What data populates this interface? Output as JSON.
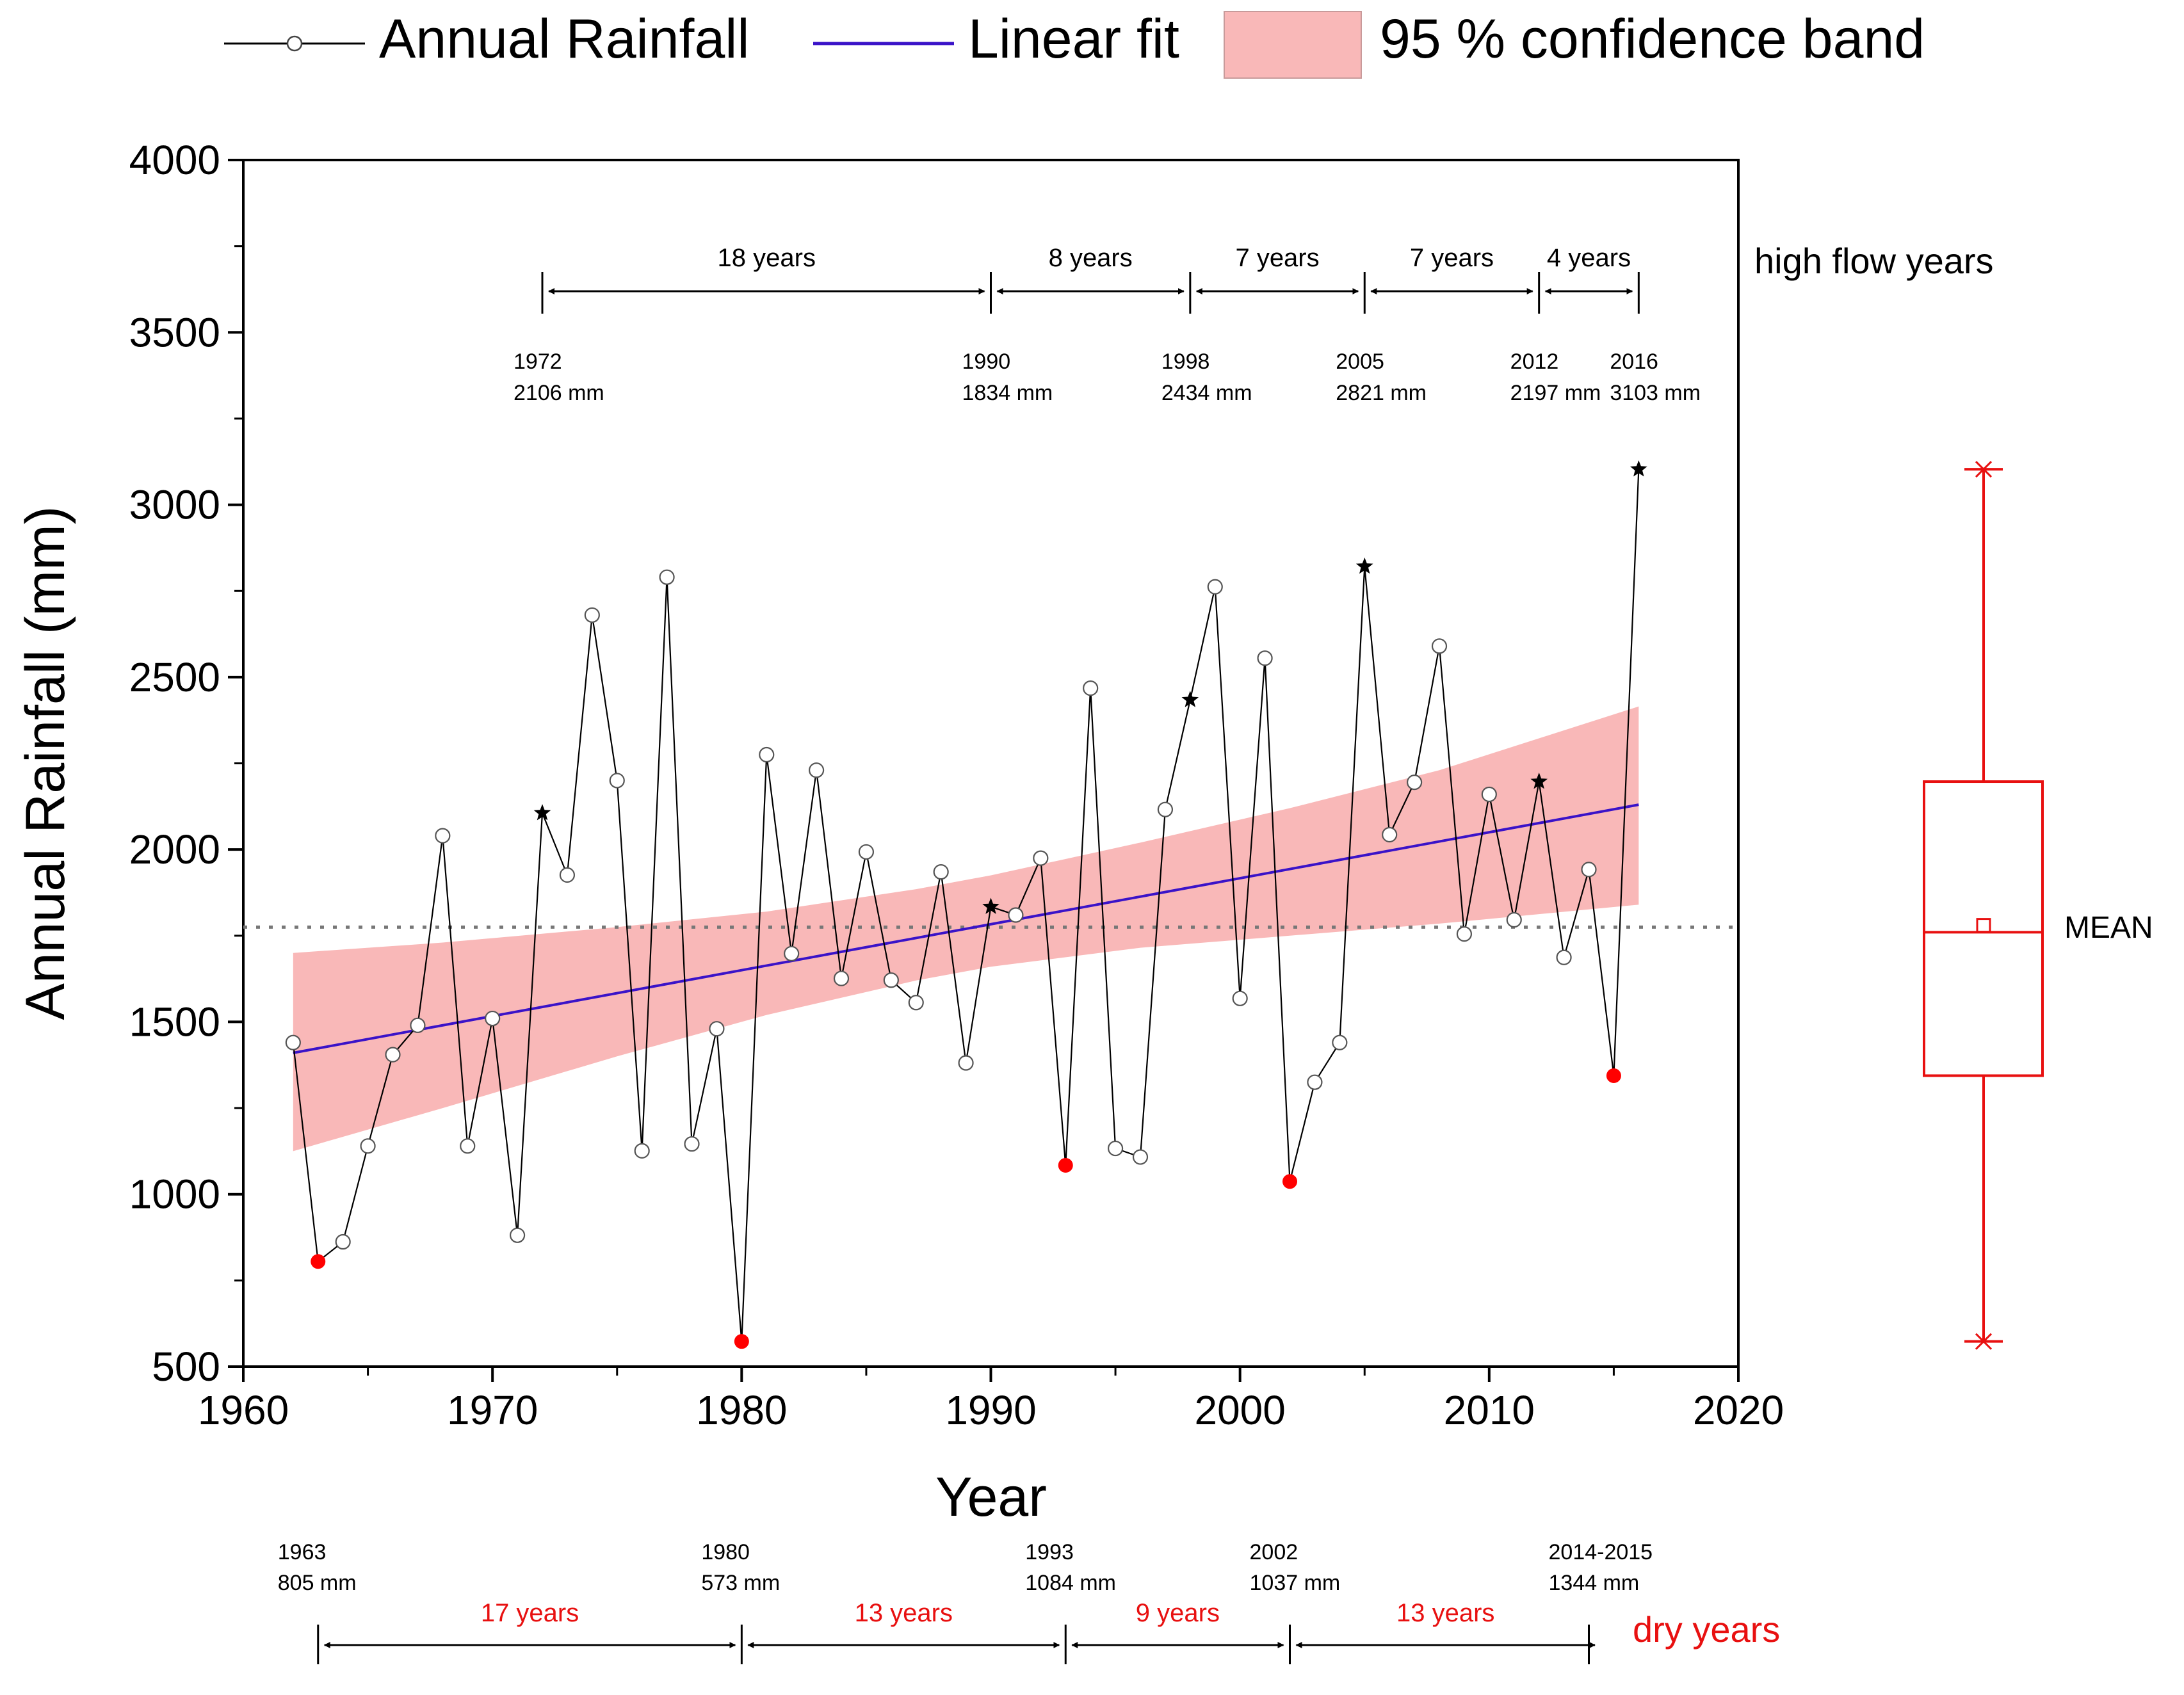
{
  "chart_data": {
    "type": "line",
    "xlabel": "Year",
    "ylabel": "Annual Rainfall (mm)",
    "xlim": [
      1960,
      2020
    ],
    "ylim": [
      500,
      4000
    ],
    "x_ticks": [
      "1960",
      "1970",
      "1980",
      "1990",
      "2000",
      "2010",
      "2020"
    ],
    "y_ticks": [
      "500",
      "1000",
      "1500",
      "2000",
      "2500",
      "3000",
      "3500",
      "4000"
    ],
    "legend": {
      "position": "top",
      "entries": [
        "Annual Rainfall",
        "Linear fit",
        "95 % confidence band"
      ]
    },
    "series": [
      {
        "name": "Annual Rainfall",
        "color": "#000000",
        "x": [
          1962,
          1963,
          1964,
          1965,
          1966,
          1967,
          1968,
          1969,
          1970,
          1971,
          1972,
          1973,
          1974,
          1975,
          1976,
          1977,
          1978,
          1979,
          1980,
          1981,
          1982,
          1983,
          1984,
          1985,
          1986,
          1987,
          1988,
          1989,
          1990,
          1991,
          1992,
          1993,
          1994,
          1995,
          1996,
          1997,
          1998,
          1999,
          2000,
          2001,
          2002,
          2003,
          2004,
          2005,
          2006,
          2007,
          2008,
          2009,
          2010,
          2011,
          2012,
          2013,
          2014,
          2015,
          2016
        ],
        "values": [
          1440,
          805,
          862,
          1140,
          1405,
          1490,
          2040,
          1140,
          1510,
          881,
          2106,
          1926,
          2680,
          2200,
          1126,
          2790,
          1146,
          1480,
          573,
          2275,
          1698,
          2230,
          1626,
          1993,
          1621,
          1556,
          1935,
          1381,
          1834,
          1810,
          1975,
          1084,
          2468,
          1133,
          1108,
          2116,
          2434,
          2762,
          1568,
          2555,
          1037,
          1325,
          1440,
          2821,
          2043,
          2195,
          2590,
          1755,
          2160,
          1796,
          2197,
          1687,
          1942,
          1344,
          3103
        ],
        "high_flow_years": [
          1972,
          1990,
          1998,
          2005,
          2012,
          2016
        ],
        "dry_years": [
          1963,
          1980,
          1993,
          2002,
          2015
        ]
      }
    ],
    "linear_fit": {
      "name": "Linear fit",
      "color": "#3a13c8",
      "x": [
        1962,
        2016
      ],
      "y": [
        1410,
        2130
      ]
    },
    "confidence_band": {
      "name": "95 % confidence band",
      "color": "#f9b8b8",
      "x": [
        1962,
        1968,
        1975,
        1981,
        1987,
        1990,
        1996,
        2002,
        2008,
        2016
      ],
      "upper": [
        1700,
        1730,
        1775,
        1820,
        1885,
        1925,
        2020,
        2120,
        2230,
        2415
      ],
      "lower": [
        1125,
        1250,
        1400,
        1520,
        1620,
        1660,
        1715,
        1750,
        1785,
        1840
      ]
    },
    "mean_line": {
      "value": 1775
    },
    "boxplot": {
      "color": "#e81010",
      "label": "MEAN",
      "min": 573,
      "q1": 1344,
      "median": 1760,
      "mean": 1780,
      "q3": 2197,
      "max": 3103
    },
    "high_flow": {
      "title": "high flow years",
      "events": [
        {
          "year": 1972,
          "year_label": "1972",
          "value_label": "2106 mm"
        },
        {
          "year": 1990,
          "year_label": "1990",
          "value_label": "1834 mm"
        },
        {
          "year": 1998,
          "year_label": "1998",
          "value_label": "2434 mm"
        },
        {
          "year": 2005,
          "year_label": "2005",
          "value_label": "2821 mm"
        },
        {
          "year": 2012,
          "year_label": "2012",
          "value_label": "2197 mm"
        },
        {
          "year": 2016,
          "year_label": "2016",
          "value_label": "3103 mm"
        }
      ],
      "intervals": [
        {
          "from": 1972,
          "to": 1990,
          "label": "18 years"
        },
        {
          "from": 1990,
          "to": 1998,
          "label": "8 years"
        },
        {
          "from": 1998,
          "to": 2005,
          "label": "7 years"
        },
        {
          "from": 2005,
          "to": 2012,
          "label": "7 years"
        },
        {
          "from": 2012,
          "to": 2016,
          "label": "4 years"
        }
      ]
    },
    "dry": {
      "title": "dry years",
      "color": "#e81010",
      "events": [
        {
          "year": 1963,
          "year_label": "1963",
          "value_label": "805 mm"
        },
        {
          "year": 1980,
          "year_label": "1980",
          "value_label": "573 mm"
        },
        {
          "year": 1993,
          "year_label": "1993",
          "value_label": "1084 mm"
        },
        {
          "year": 2002,
          "year_label": "2002",
          "value_label": "1037 mm"
        },
        {
          "year": 2014,
          "year_label": "2014-2015",
          "value_label": "1344 mm"
        }
      ],
      "intervals": [
        {
          "from": 1963,
          "to": 1980,
          "label": "17 years"
        },
        {
          "from": 1980,
          "to": 1993,
          "label": "13 years"
        },
        {
          "from": 1993,
          "to": 2002,
          "label": "9 years"
        },
        {
          "from": 2002,
          "to": 2014.5,
          "label": "13 years"
        }
      ]
    }
  }
}
